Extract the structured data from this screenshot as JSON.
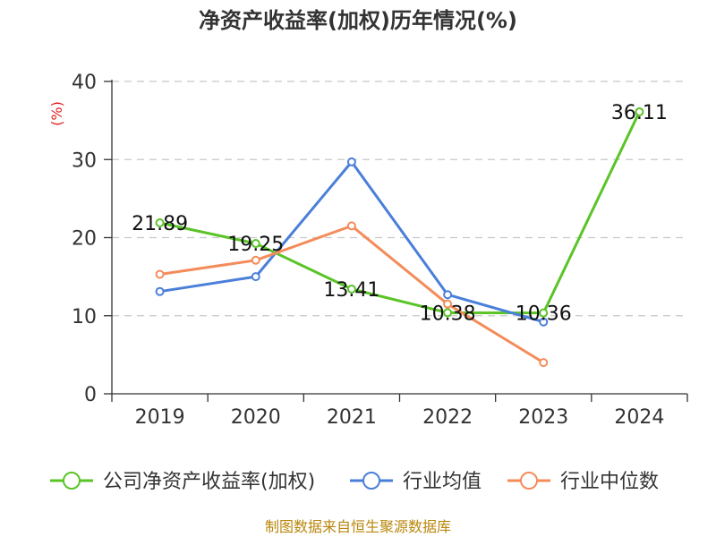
{
  "chart_data": {
    "type": "line",
    "title": "净资产收益率(加权)历年情况(%)",
    "ylabel": "(%)",
    "xlabel": "",
    "categories": [
      "2019",
      "2020",
      "2021",
      "2022",
      "2023",
      "2024"
    ],
    "ylim": [
      0,
      40
    ],
    "yticks": [
      0,
      10,
      20,
      30,
      40
    ],
    "grid": true,
    "legend_position": "bottom",
    "series": [
      {
        "name": "公司净资产收益率(加权)",
        "color": "#5ac427",
        "values": [
          21.89,
          19.25,
          13.41,
          10.38,
          10.36,
          36.11
        ],
        "labels": [
          "21.89",
          "19.25",
          "13.41",
          "10.38",
          "10.36",
          "36.11"
        ]
      },
      {
        "name": "行业均值",
        "color": "#4a7fd9",
        "values": [
          13.1,
          15.0,
          29.7,
          12.7,
          9.2,
          null
        ]
      },
      {
        "name": "行业中位数",
        "color": "#f48c5a",
        "values": [
          15.3,
          17.1,
          21.5,
          11.5,
          4.0,
          null
        ]
      }
    ]
  },
  "source": "制图数据来自恒生聚源数据库"
}
